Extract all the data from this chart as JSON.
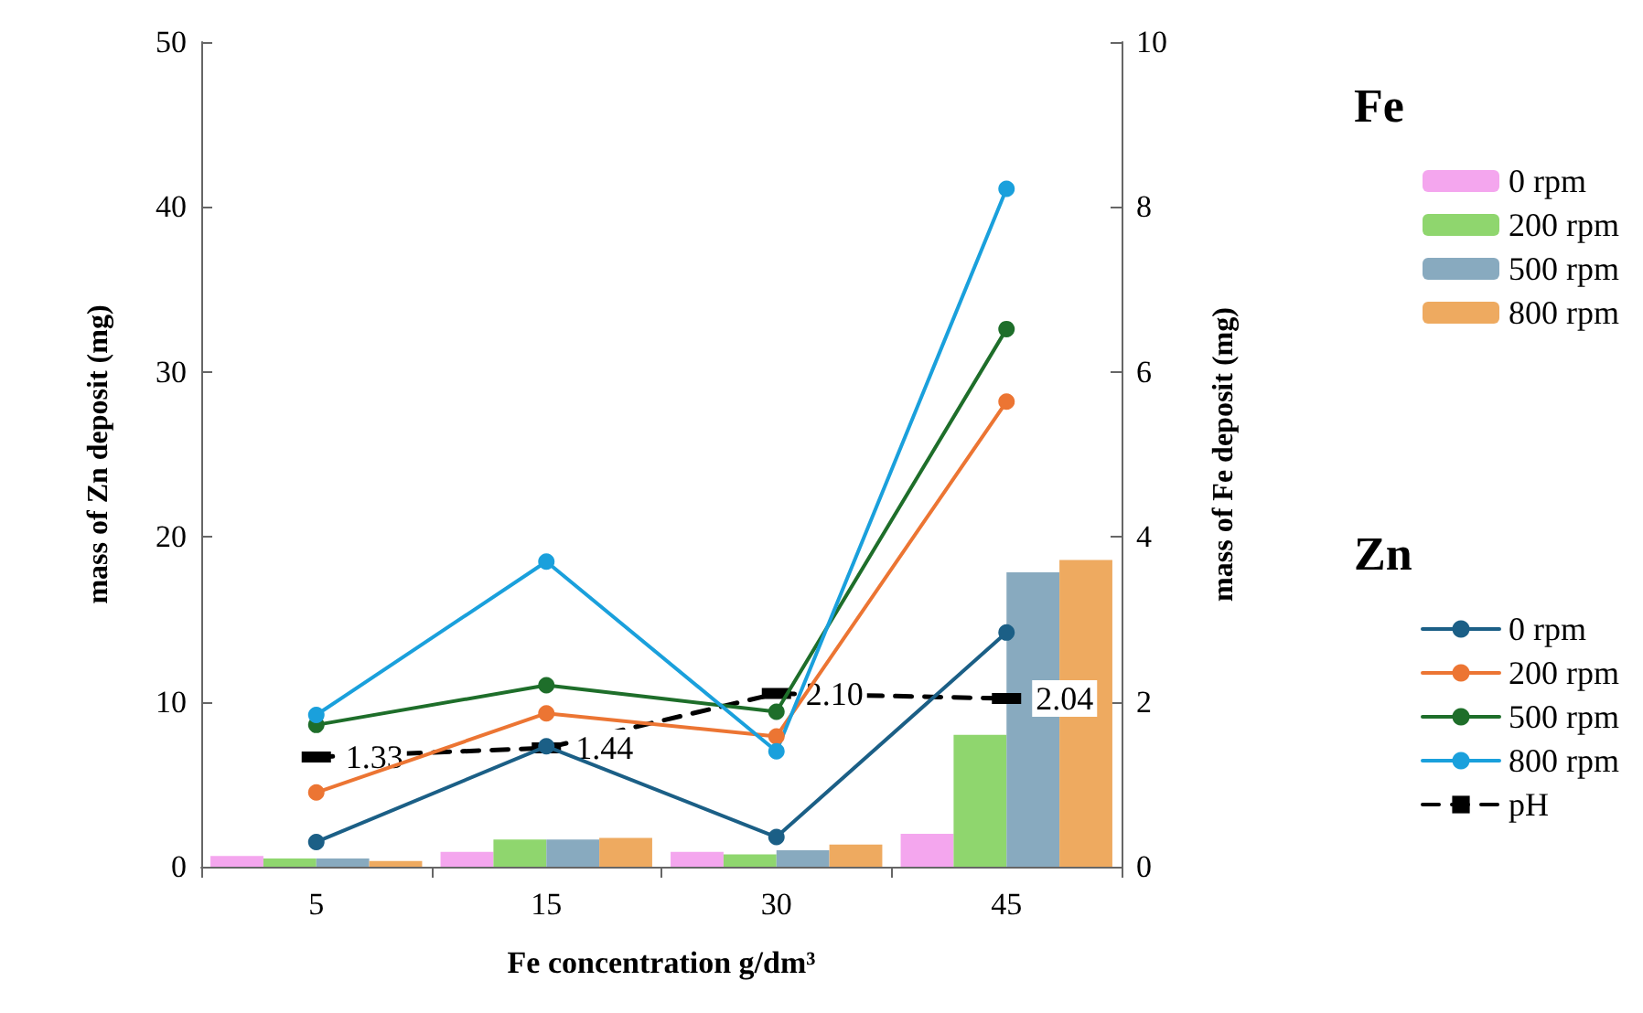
{
  "chart_data": {
    "type": "bar",
    "xlabel": "Fe concentration g/dm³",
    "ylabel": "mass of Zn deposit (mg)",
    "y2label": "mass of Fe deposit (mg)",
    "categories": [
      "5",
      "15",
      "30",
      "45"
    ],
    "ylim": [
      0,
      50
    ],
    "yticks": [
      0,
      10,
      20,
      30,
      40,
      50
    ],
    "y2lim": [
      0,
      10
    ],
    "y2ticks": [
      0,
      2,
      4,
      6,
      8,
      10
    ],
    "grid": false,
    "legend": "right",
    "annotations": [
      "Fe",
      "Zn"
    ],
    "series": [
      {
        "name": "0 rpm",
        "axis": "y2",
        "color": "#f4a6ee",
        "values": [
          0.13,
          0.18,
          0.18,
          0.4
        ]
      },
      {
        "name": "200 rpm",
        "axis": "y2",
        "color": "#8fd66e",
        "values": [
          0.1,
          0.33,
          0.15,
          1.6
        ]
      },
      {
        "name": "500 rpm",
        "axis": "y2",
        "color": "#88aabf",
        "values": [
          0.1,
          0.33,
          0.2,
          3.57
        ]
      },
      {
        "name": "800 rpm",
        "axis": "y2",
        "color": "#eeaa60",
        "values": [
          0.07,
          0.35,
          0.27,
          3.72
        ]
      },
      {
        "name": "0 rpm",
        "type": "line",
        "marker": "circle",
        "line_style": "solid",
        "color": "#1b5f86",
        "values": [
          1.5,
          7.3,
          1.8,
          14.2
        ]
      },
      {
        "name": "200 rpm",
        "type": "line",
        "marker": "circle",
        "line_style": "solid",
        "color": "#ec7533",
        "values": [
          4.5,
          9.3,
          7.9,
          28.2
        ]
      },
      {
        "name": "500 rpm",
        "type": "line",
        "marker": "circle",
        "line_style": "solid",
        "color": "#1e6e2a",
        "values": [
          8.6,
          11,
          9.4,
          32.6
        ]
      },
      {
        "name": "800 rpm",
        "type": "line",
        "marker": "circle",
        "line_style": "solid",
        "color": "#1aa0dc",
        "values": [
          9.2,
          18.5,
          7.0,
          41.1
        ]
      },
      {
        "name": "pH",
        "type": "line",
        "axis": "y2",
        "marker": "square",
        "line_style": "dashed",
        "color": "#000000",
        "values": [
          1.33,
          1.44,
          2.1,
          2.04
        ],
        "value_labels": [
          "1.33",
          "1.44",
          "2.10",
          "2.04"
        ]
      }
    ]
  }
}
